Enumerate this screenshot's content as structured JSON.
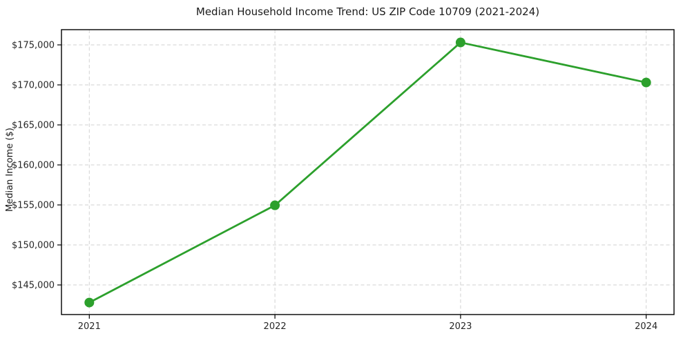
{
  "chart_data": {
    "type": "line",
    "title": "Median Household Income Trend: US ZIP Code 10709 (2021-2024)",
    "xlabel": "",
    "ylabel": "Median Income ($)",
    "x": [
      2021,
      2022,
      2023,
      2024
    ],
    "x_tick_labels": [
      "2021",
      "2022",
      "2023",
      "2024"
    ],
    "series": [
      {
        "name": "Median Household Income",
        "values": [
          142800,
          154950,
          175300,
          170300
        ],
        "color": "#2ca02c",
        "marker": "circle"
      }
    ],
    "y_ticks": [
      {
        "value": 145000,
        "label": "$145,000"
      },
      {
        "value": 150000,
        "label": "$150,000"
      },
      {
        "value": 155000,
        "label": "$155,000"
      },
      {
        "value": 160000,
        "label": "$160,000"
      },
      {
        "value": 165000,
        "label": "$165,000"
      },
      {
        "value": 170000,
        "label": "$170,000"
      },
      {
        "value": 175000,
        "label": "$175,000"
      }
    ],
    "xlim": [
      2020.85,
      2024.15
    ],
    "ylim": [
      141300,
      176900
    ],
    "grid": "dashed, both axes, at ticks",
    "legend_position": "none",
    "colors": {
      "line": "#2ca02c",
      "grid": "#d6d6d6",
      "spine": "#000000",
      "tick_text": "#262626",
      "background": "#ffffff"
    }
  }
}
